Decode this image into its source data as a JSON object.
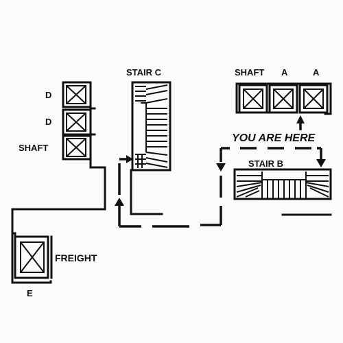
{
  "labels": {
    "stair_c": "STAIR C",
    "shaft_top": "SHAFT",
    "a1": "A",
    "a2": "A",
    "d1": "D",
    "d2": "D",
    "shaft_left": "SHAFT",
    "you_are_here": "YOU ARE HERE",
    "stair_b": "STAIR B",
    "freight": "FREIGHT",
    "e": "E"
  },
  "colors": {
    "ink": "#111111",
    "background": "#fbfbfb"
  },
  "icons": [
    "elevator-car-icon",
    "arrow-up-icon",
    "arrow-down-icon"
  ]
}
